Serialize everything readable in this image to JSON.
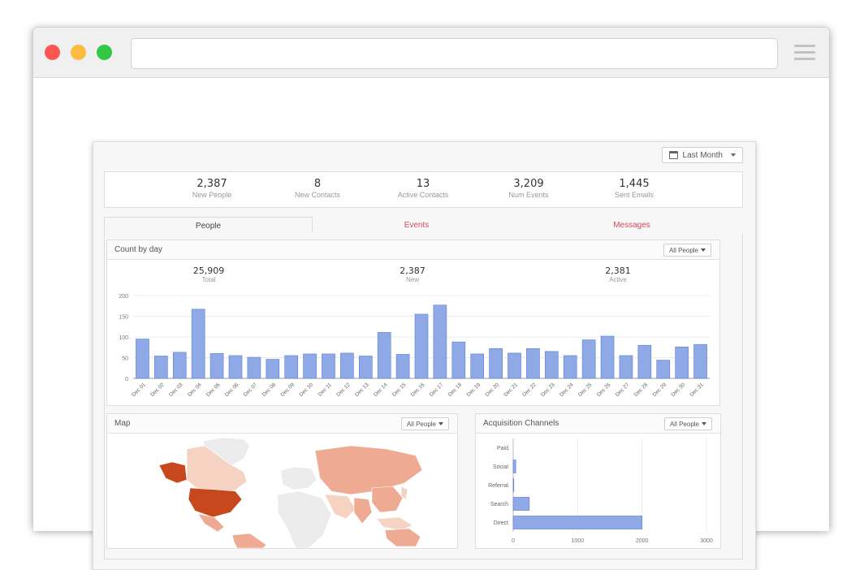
{
  "toolbar": {
    "date_range": "Last Month"
  },
  "stats": [
    {
      "value": "2,387",
      "label": "New People"
    },
    {
      "value": "8",
      "label": "New Contacts"
    },
    {
      "value": "13",
      "label": "Active Contacts"
    },
    {
      "value": "3,209",
      "label": "Num Events"
    },
    {
      "value": "1,445",
      "label": "Sent Emails"
    }
  ],
  "tabs": [
    {
      "label": "People",
      "active": true
    },
    {
      "label": "Events",
      "active": false
    },
    {
      "label": "Messages",
      "active": false
    }
  ],
  "count_by_day": {
    "title": "Count by day",
    "filter": "All People",
    "summary": [
      {
        "value": "25,909",
        "label": "Total"
      },
      {
        "value": "2,387",
        "label": "New"
      },
      {
        "value": "2,381",
        "label": "Active"
      }
    ]
  },
  "map": {
    "title": "Map",
    "filter": "All People"
  },
  "acquisition": {
    "title": "Acquisition Channels",
    "filter": "All People"
  },
  "colors": {
    "bar": "#8fa9e6",
    "bar_stroke": "#5b7fd6",
    "accent_tab": "#d94a5a",
    "map_high": "#c8481e",
    "map_mid": "#eeaa92",
    "map_low": "#f6d2c2",
    "map_none": "#ececec"
  },
  "chart_data": [
    {
      "type": "bar",
      "categories": [
        "Dec 01",
        "Dec 02",
        "Dec 03",
        "Dec 04",
        "Dec 05",
        "Dec 06",
        "Dec 07",
        "Dec 08",
        "Dec 09",
        "Dec 10",
        "Dec 11",
        "Dec 12",
        "Dec 13",
        "Dec 14",
        "Dec 15",
        "Dec 16",
        "Dec 17",
        "Dec 18",
        "Dec 19",
        "Dec 20",
        "Dec 21",
        "Dec 22",
        "Dec 23",
        "Dec 24",
        "Dec 25",
        "Dec 26",
        "Dec 27",
        "Dec 28",
        "Dec 29",
        "Dec 30",
        "Dec 31"
      ],
      "values": [
        95,
        54,
        63,
        167,
        60,
        55,
        51,
        46,
        55,
        59,
        59,
        61,
        54,
        111,
        58,
        155,
        177,
        88,
        59,
        72,
        61,
        72,
        65,
        55,
        93,
        102,
        55,
        80,
        44,
        76,
        82
      ],
      "yticks": [
        "0",
        "50",
        "100",
        "150",
        "200"
      ],
      "ylim": [
        0,
        200
      ],
      "grid": true
    },
    {
      "type": "bar",
      "orientation": "horizontal",
      "categories": [
        "Paid",
        "Social",
        "Referral",
        "Search",
        "Direct"
      ],
      "values": [
        0,
        40,
        10,
        250,
        2000
      ],
      "xticks": [
        "0",
        "1000",
        "2000",
        "3000"
      ],
      "xlim": [
        0,
        3000
      ],
      "grid": true
    }
  ]
}
